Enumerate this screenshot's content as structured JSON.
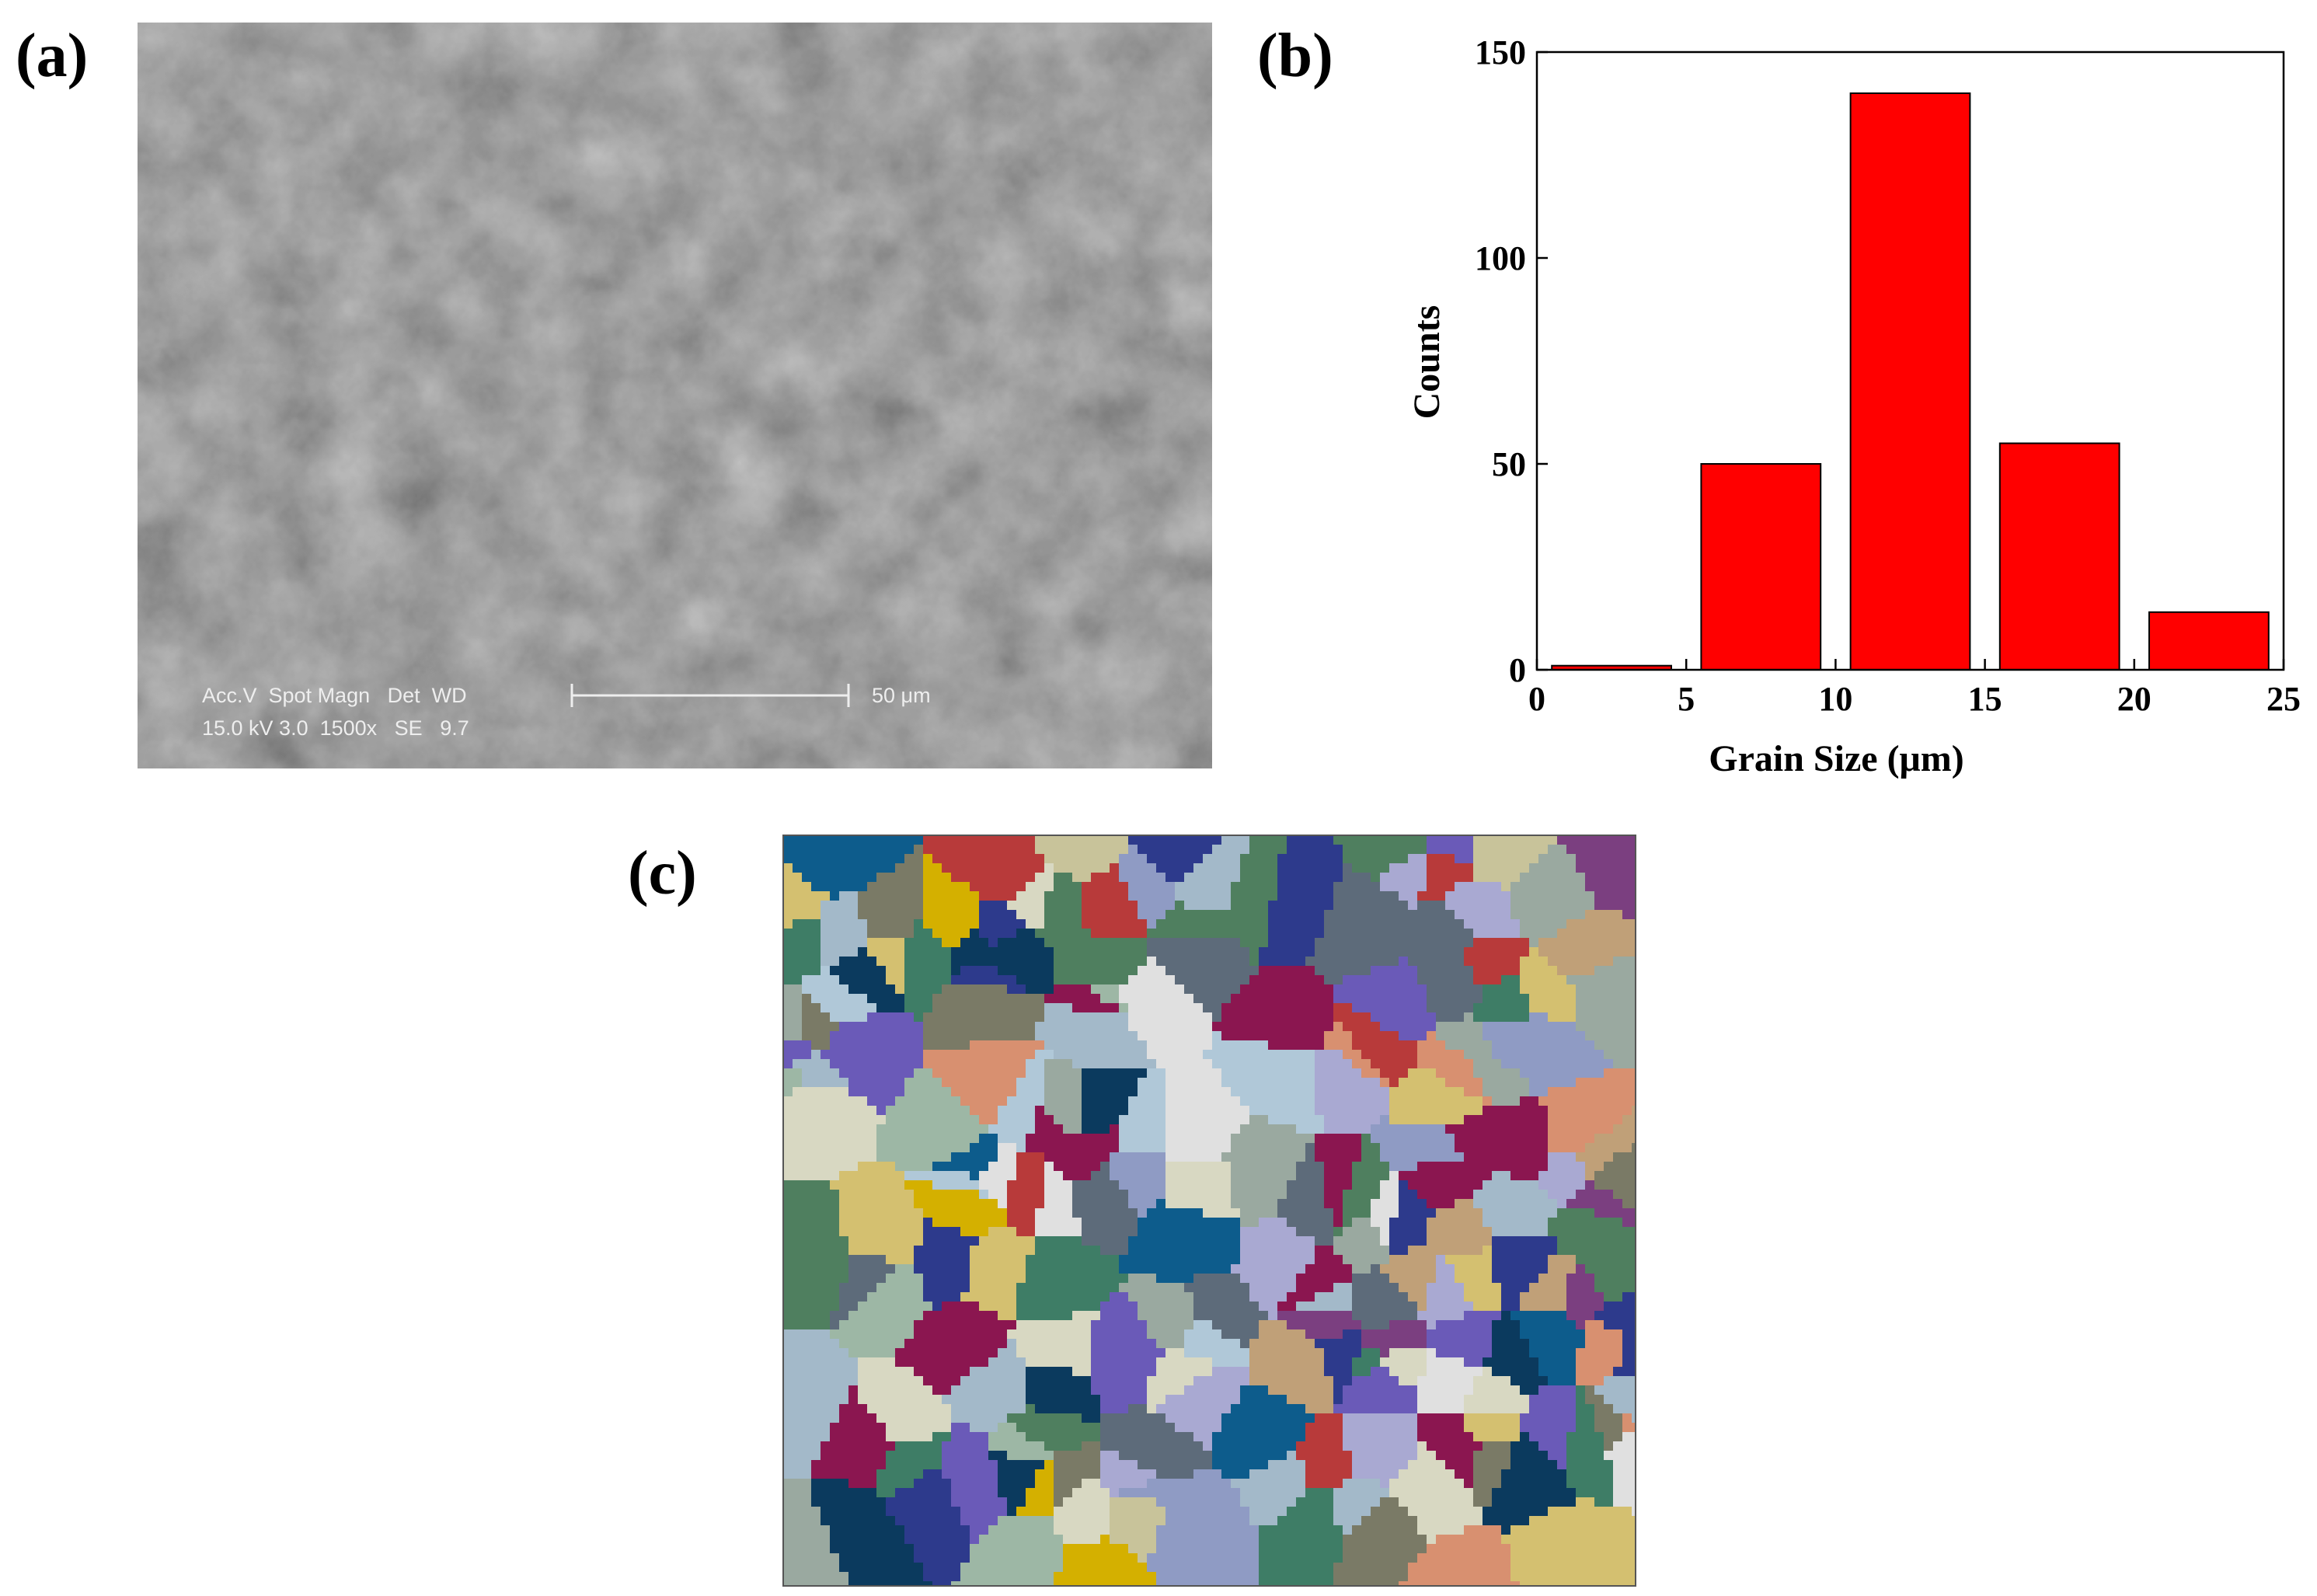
{
  "panels": {
    "a": "(a)",
    "b": "(b)",
    "c": "(c)"
  },
  "sem": {
    "line1": "Acc.V  Spot Magn   Det  WD",
    "line2": "15.0 kV 3.0  1500x   SE   9.7",
    "scale_bar": "50 μm"
  },
  "chart_data": {
    "type": "histogram",
    "bins": [
      0,
      5,
      10,
      15,
      20,
      25
    ],
    "values": [
      1,
      50,
      140,
      55,
      14
    ],
    "color": "#ff0000",
    "xlim": [
      0,
      25
    ],
    "xticks": [
      0,
      5,
      10,
      15,
      20,
      25
    ],
    "ylim": [
      0,
      150
    ],
    "yticks": [
      0,
      50,
      100,
      150
    ],
    "xlabel": "Grain Size  (μm)",
    "ylabel": "Counts"
  }
}
